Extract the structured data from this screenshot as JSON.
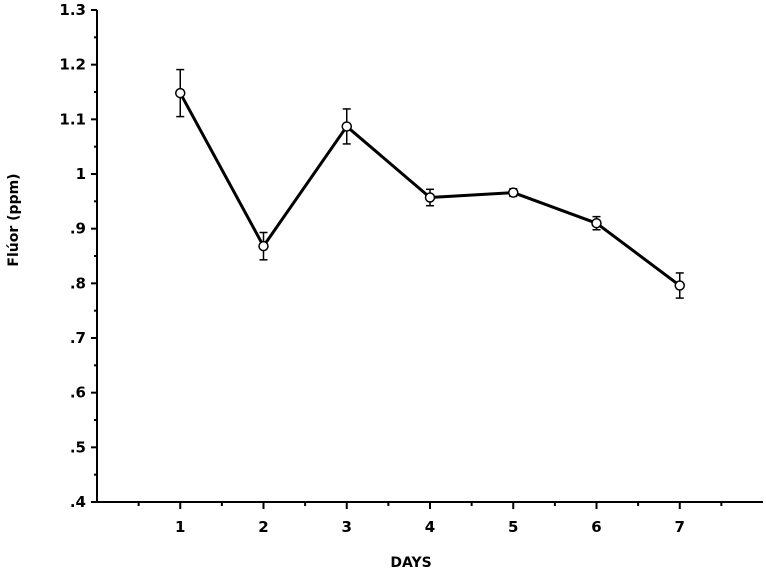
{
  "chart_data": {
    "type": "line",
    "title": "",
    "xlabel": "DAYS",
    "ylabel": "Flúor (ppm)",
    "x": [
      1,
      2,
      3,
      4,
      5,
      6,
      7
    ],
    "xlim": [
      0,
      8
    ],
    "ylim": [
      0.4,
      1.3
    ],
    "x_ticks": [
      "1",
      "2",
      "3",
      "4",
      "5",
      "6",
      "7"
    ],
    "y_ticks": [
      {
        "value": 1.3,
        "label": "1.3"
      },
      {
        "value": 1.2,
        "label": "1.2"
      },
      {
        "value": 1.1,
        "label": "1.1"
      },
      {
        "value": 1.0,
        "label": "1"
      },
      {
        "value": 0.9,
        "label": ".9"
      },
      {
        "value": 0.8,
        "label": ".8"
      },
      {
        "value": 0.7,
        "label": ".7"
      },
      {
        "value": 0.6,
        "label": ".6"
      },
      {
        "value": 0.5,
        "label": ".5"
      },
      {
        "value": 0.4,
        "label": ".4"
      }
    ],
    "grid": false,
    "series": [
      {
        "values": [
          1.148,
          0.868,
          1.087,
          0.957,
          0.966,
          0.91,
          0.796
        ],
        "error": [
          0.043,
          0.025,
          0.032,
          0.015,
          0.007,
          0.012,
          0.023
        ],
        "color": "#000000",
        "marker": "open-circle"
      }
    ]
  }
}
